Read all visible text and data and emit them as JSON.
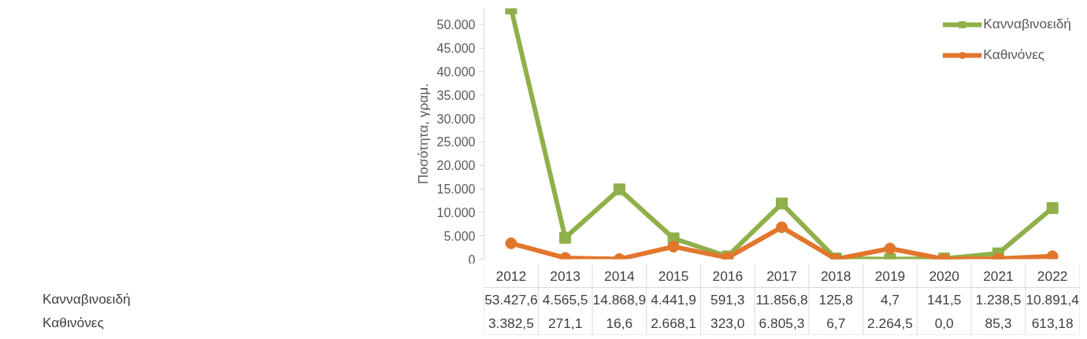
{
  "chart_data": {
    "type": "line",
    "ylabel": "Ποσότητα, γραμ.",
    "categories": [
      "2012",
      "2013",
      "2014",
      "2015",
      "2016",
      "2017",
      "2018",
      "2019",
      "2020",
      "2021",
      "2022"
    ],
    "series": [
      {
        "name": "Κανναβινοειδή",
        "color": "#8fb04a",
        "marker": "square",
        "values": [
          53427.6,
          4565.5,
          14868.9,
          4441.9,
          591.3,
          11856.8,
          125.8,
          4.7,
          141.5,
          1238.5,
          10891.4
        ],
        "value_labels": [
          "53.427,6",
          "4.565,5",
          "14.868,9",
          "4.441,9",
          "591,3",
          "11.856,8",
          "125,8",
          "4,7",
          "141,5",
          "1.238,5",
          "10.891,4"
        ]
      },
      {
        "name": "Καθινόνες",
        "color": "#e2762d",
        "marker": "circle",
        "values": [
          3382.5,
          271.1,
          16.6,
          2668.1,
          323.0,
          6805.3,
          6.7,
          2264.5,
          0.0,
          85.3,
          613.18
        ],
        "value_labels": [
          "3.382,5",
          "271,1",
          "16,6",
          "2.668,1",
          "323,0",
          "6.805,3",
          "6,7",
          "2.264,5",
          "0,0",
          "85,3",
          "613,18"
        ]
      }
    ],
    "ylim": [
      0,
      53500
    ],
    "yticks": [
      0,
      {
        "value": 5000,
        "label": "5.000"
      },
      {
        "value": 10000,
        "label": "10.000"
      },
      {
        "value": 15000,
        "label": "15.000"
      },
      {
        "value": 20000,
        "label": "20.000"
      },
      {
        "value": 25000,
        "label": "25.000"
      },
      {
        "value": 30000,
        "label": "30.000"
      },
      {
        "value": 35000,
        "label": "35.000"
      },
      {
        "value": 40000,
        "label": "40.000"
      },
      {
        "value": 45000,
        "label": "45.000"
      },
      {
        "value": 50000,
        "label": "50.000"
      }
    ],
    "legend": "top right",
    "grid": false,
    "line_style": "solid"
  }
}
